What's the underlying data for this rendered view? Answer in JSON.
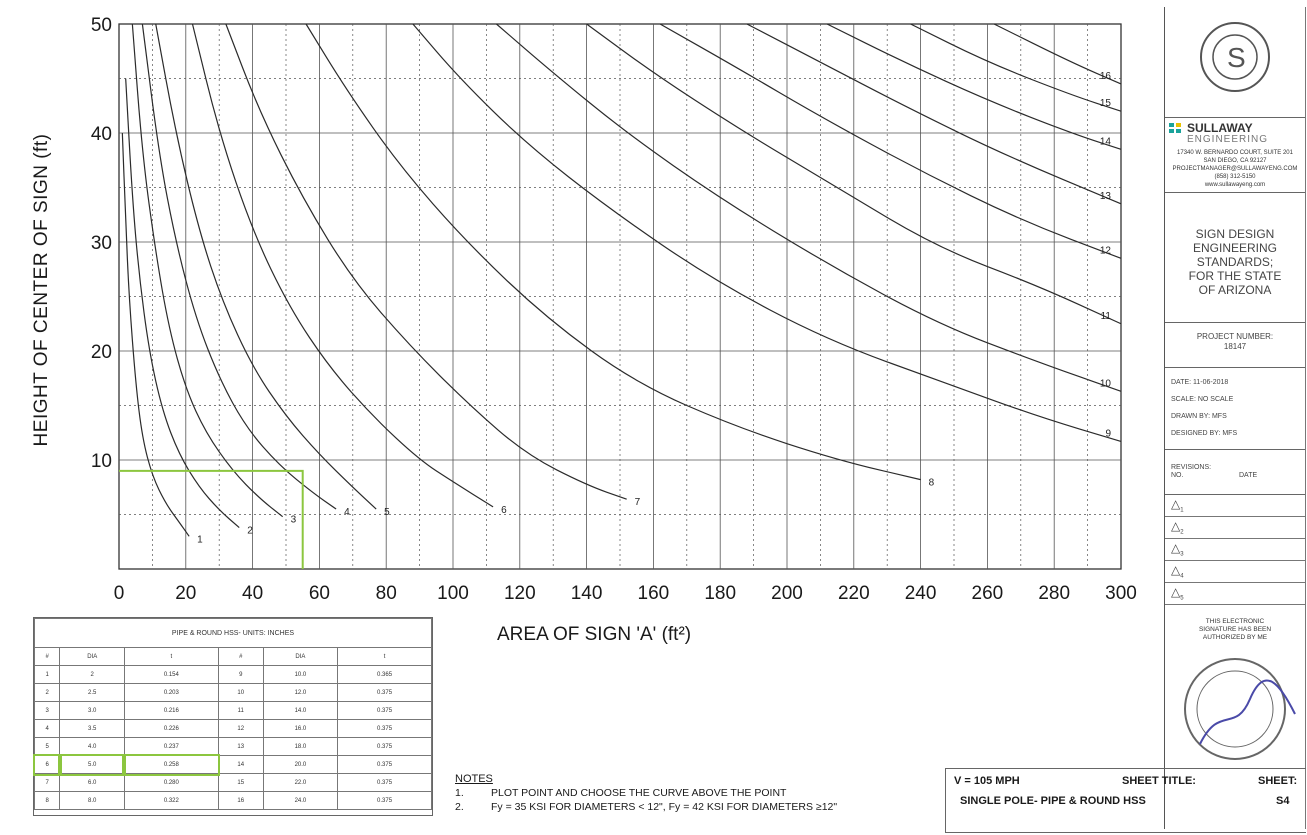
{
  "chart_data": {
    "type": "line",
    "ylabel": "HEIGHT OF CENTER OF SIGN (ft)",
    "xlabel": "AREA OF SIGN 'A' (ft²)",
    "xlim": [
      0,
      300
    ],
    "ylim": [
      0,
      50
    ],
    "x_ticks": [
      "0",
      "20",
      "40",
      "60",
      "80",
      "100",
      "120",
      "140",
      "160",
      "180",
      "200",
      "220",
      "240",
      "260",
      "280",
      "300"
    ],
    "y_ticks": [
      "0",
      "10",
      "20",
      "30",
      "40",
      "50"
    ],
    "grid": true,
    "series": [
      {
        "name": "1",
        "points": [
          [
            1,
            40
          ],
          [
            2,
            32
          ],
          [
            3,
            25
          ],
          [
            5,
            17
          ],
          [
            7,
            12
          ],
          [
            10,
            8.5
          ],
          [
            14,
            6
          ],
          [
            18,
            4.3
          ],
          [
            21,
            3
          ]
        ]
      },
      {
        "name": "2",
        "points": [
          [
            2,
            45
          ],
          [
            4,
            34
          ],
          [
            6,
            27
          ],
          [
            9,
            20
          ],
          [
            13,
            14.5
          ],
          [
            18,
            10.5
          ],
          [
            24,
            7.5
          ],
          [
            30,
            5.4
          ],
          [
            36,
            3.8
          ]
        ]
      },
      {
        "name": "3",
        "points": [
          [
            4,
            50
          ],
          [
            7,
            38
          ],
          [
            11,
            29
          ],
          [
            15,
            22
          ],
          [
            20,
            16.5
          ],
          [
            26,
            12.5
          ],
          [
            34,
            9
          ],
          [
            42,
            6.5
          ],
          [
            49,
            4.8
          ]
        ]
      },
      {
        "name": "4",
        "points": [
          [
            7,
            50
          ],
          [
            12,
            38
          ],
          [
            17,
            30
          ],
          [
            23,
            23
          ],
          [
            30,
            17.5
          ],
          [
            38,
            13
          ],
          [
            48,
            9.5
          ],
          [
            58,
            7
          ],
          [
            65,
            5.5
          ]
        ]
      },
      {
        "name": "5",
        "points": [
          [
            11,
            50
          ],
          [
            17,
            40
          ],
          [
            24,
            31
          ],
          [
            31,
            24.5
          ],
          [
            40,
            18.5
          ],
          [
            50,
            14
          ],
          [
            60,
            10.5
          ],
          [
            70,
            7.5
          ],
          [
            77,
            5.5
          ]
        ]
      },
      {
        "name": "6",
        "points": [
          [
            22,
            50
          ],
          [
            30,
            40
          ],
          [
            40,
            31
          ],
          [
            51,
            24
          ],
          [
            63,
            18.5
          ],
          [
            76,
            14
          ],
          [
            90,
            10
          ],
          [
            100,
            8
          ],
          [
            112,
            5.7
          ]
        ]
      },
      {
        "name": "7",
        "points": [
          [
            32,
            50
          ],
          [
            42,
            42
          ],
          [
            55,
            34
          ],
          [
            70,
            26.5
          ],
          [
            87,
            20.5
          ],
          [
            105,
            15
          ],
          [
            122,
            10.5
          ],
          [
            140,
            7.7
          ],
          [
            152,
            6.4
          ]
        ]
      },
      {
        "name": "8",
        "points": [
          [
            56,
            50
          ],
          [
            68,
            44
          ],
          [
            84,
            37
          ],
          [
            104,
            30
          ],
          [
            128,
            23
          ],
          [
            155,
            17
          ],
          [
            185,
            13
          ],
          [
            215,
            10
          ],
          [
            240,
            8.2
          ]
        ]
      },
      {
        "name": "9",
        "points": [
          [
            88,
            50
          ],
          [
            102,
            45
          ],
          [
            122,
            39
          ],
          [
            147,
            33
          ],
          [
            178,
            26.5
          ],
          [
            212,
            21
          ],
          [
            248,
            17
          ],
          [
            275,
            14
          ],
          [
            300,
            11.7
          ]
        ]
      },
      {
        "name": "10",
        "points": [
          [
            113,
            50
          ],
          [
            130,
            45.5
          ],
          [
            152,
            40
          ],
          [
            180,
            34
          ],
          [
            212,
            28
          ],
          [
            245,
            22.5
          ],
          [
            275,
            19
          ],
          [
            300,
            16.3
          ]
        ]
      },
      {
        "name": "11",
        "points": [
          [
            140,
            50
          ],
          [
            160,
            45.5
          ],
          [
            185,
            40.5
          ],
          [
            215,
            35
          ],
          [
            245,
            29.5
          ],
          [
            275,
            26
          ],
          [
            300,
            22.5
          ]
        ]
      },
      {
        "name": "12",
        "points": [
          [
            162,
            50
          ],
          [
            185,
            46
          ],
          [
            210,
            41.5
          ],
          [
            240,
            36.5
          ],
          [
            270,
            32
          ],
          [
            300,
            28.5
          ]
        ]
      },
      {
        "name": "13",
        "points": [
          [
            188,
            50
          ],
          [
            210,
            46.5
          ],
          [
            235,
            42.5
          ],
          [
            265,
            38
          ],
          [
            300,
            33.5
          ]
        ]
      },
      {
        "name": "14",
        "points": [
          [
            212,
            50
          ],
          [
            235,
            46.5
          ],
          [
            260,
            43
          ],
          [
            285,
            40
          ],
          [
            300,
            38.5
          ]
        ]
      },
      {
        "name": "15",
        "points": [
          [
            237,
            50
          ],
          [
            260,
            46.5
          ],
          [
            285,
            43.5
          ],
          [
            300,
            42
          ]
        ]
      },
      {
        "name": "16",
        "points": [
          [
            262,
            50
          ],
          [
            285,
            46.5
          ],
          [
            300,
            44.5
          ]
        ]
      }
    ],
    "annotation": {
      "x": 55,
      "y": 9
    }
  },
  "table": {
    "title": "PIPE & ROUND HSS- UNITS: INCHES",
    "headers": [
      "#",
      "DIA",
      "t",
      "#",
      "DIA",
      "t"
    ],
    "rows": [
      [
        "1",
        "2",
        "0.154",
        "9",
        "10.0",
        "0.365"
      ],
      [
        "2",
        "2.5",
        "0.203",
        "10",
        "12.0",
        "0.375"
      ],
      [
        "3",
        "3.0",
        "0.216",
        "11",
        "14.0",
        "0.375"
      ],
      [
        "4",
        "3.5",
        "0.226",
        "12",
        "16.0",
        "0.375"
      ],
      [
        "5",
        "4.0",
        "0.237",
        "13",
        "18.0",
        "0.375"
      ],
      [
        "6",
        "5.0",
        "0.258",
        "14",
        "20.0",
        "0.375"
      ],
      [
        "7",
        "6.0",
        "0.280",
        "15",
        "22.0",
        "0.375"
      ],
      [
        "8",
        "8.0",
        "0.322",
        "16",
        "24.0",
        "0.375"
      ]
    ]
  },
  "notes": {
    "heading": "NOTES",
    "n1_num": "1.",
    "n1": "PLOT POINT AND CHOOSE THE CURVE ABOVE THE POINT",
    "n2_num": "2.",
    "n2": "Fy = 35 KSI FOR DIAMETERS < 12\", Fy = 42 KSI FOR DIAMETERS ≥12\""
  },
  "title_block": {
    "company_name": "SULLAWAY",
    "company_sub": "ENGINEERING",
    "address": [
      "17340 W. BERNARDO COURT, SUITE 201",
      "SAN DIEGO, CA 92127",
      "PROJECTMANAGER@SULLAWAYENG.COM",
      "(858) 312-5150",
      "www.sullawayeng.com"
    ],
    "sheet_desc": [
      "SIGN DESIGN",
      "ENGINEERING",
      "STANDARDS;",
      "FOR THE STATE",
      "OF ARIZONA"
    ],
    "project_label": "PROJECT NUMBER:",
    "project_number": "18147",
    "date": "DATE: 11-06-2018",
    "scale": "SCALE: NO SCALE",
    "drawn": "DRAWN BY: MFS",
    "designed": "DESIGNED BY: MFS",
    "revisions": "REVISIONS:",
    "rev_no": "NO.",
    "rev_date": "DATE",
    "rev_marks": [
      "1",
      "2",
      "3",
      "4",
      "5"
    ],
    "signature_note": [
      "THIS ELECTRONIC",
      "SIGNATURE HAS BEEN",
      "AUTHORIZED BY ME"
    ]
  },
  "footer": {
    "wind": "V = 105 MPH",
    "sheet_title_label": "SHEET TITLE:",
    "sheet_title": "SINGLE POLE- PIPE & ROUND HSS",
    "sheet_label": "SHEET:",
    "sheet_number": "S4"
  },
  "colors": {
    "curve": "#2b2b2b",
    "highlight": "#8cc63f",
    "teal": "#1aa39b"
  }
}
